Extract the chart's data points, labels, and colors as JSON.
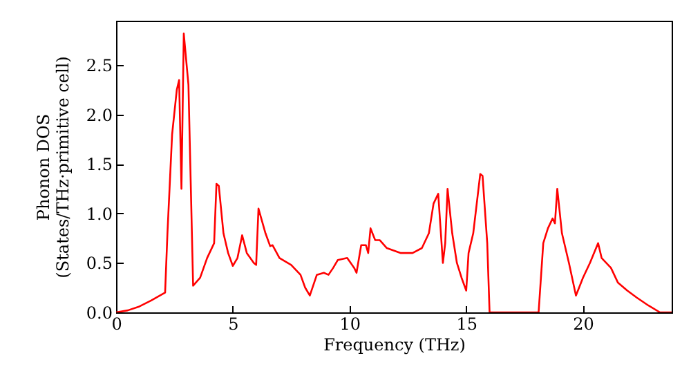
{
  "chart_data": {
    "type": "line",
    "xlabel": "Frequency (THz)",
    "ylabel": "Phonon DOS\n(States/THz·primitive cell)",
    "xlim": [
      0,
      23.8
    ],
    "xticks": [
      0,
      5,
      10,
      15,
      20
    ],
    "ylim": [
      0,
      2.95
    ],
    "yticks": [
      {
        "value": 0,
        "label": "0.0"
      },
      {
        "value": 0.5,
        "label": "0.5"
      },
      {
        "value": 1,
        "label": "1.0"
      },
      {
        "value": 1.5,
        "label": "1.5"
      },
      {
        "value": 2,
        "label": "2.0"
      },
      {
        "value": 2.5,
        "label": "2.5"
      }
    ],
    "grid": false,
    "marker": "none",
    "line_style": "solid",
    "series": [
      {
        "color": "#ff0000",
        "x": [
          0,
          0.5,
          1,
          1.5,
          2.1,
          2.2,
          2.4,
          2.6,
          2.7,
          2.8,
          2.9,
          3.1,
          3.3,
          3.6,
          3.9,
          4.2,
          4.3,
          4.4,
          4.6,
          4.8,
          5.0,
          5.2,
          5.4,
          5.6,
          5.9,
          6.0,
          6.1,
          6.4,
          6.6,
          6.7,
          7.0,
          7.5,
          7.9,
          8.1,
          8.3,
          8.6,
          8.9,
          9.1,
          9.3,
          9.5,
          9.9,
          10.2,
          10.3,
          10.5,
          10.7,
          10.8,
          10.9,
          11.1,
          11.3,
          11.6,
          12.2,
          12.7,
          13.1,
          13.4,
          13.6,
          13.8,
          14.0,
          14.1,
          14.2,
          14.4,
          14.6,
          14.8,
          15.0,
          15.1,
          15.3,
          15.6,
          15.7,
          15.9,
          16.0,
          18.1,
          18.3,
          18.5,
          18.7,
          18.8,
          18.9,
          19.1,
          19.4,
          19.7,
          20.0,
          20.3,
          20.65,
          20.8,
          21.2,
          21.5,
          21.9,
          22.3,
          22.8,
          23.3,
          23.8
        ],
        "values": [
          0,
          0.02,
          0.06,
          0.12,
          0.2,
          0.8,
          1.8,
          2.25,
          2.35,
          1.25,
          2.82,
          2.3,
          0.27,
          0.35,
          0.55,
          0.7,
          1.3,
          1.28,
          0.8,
          0.6,
          0.47,
          0.55,
          0.78,
          0.6,
          0.5,
          0.48,
          1.05,
          0.8,
          0.67,
          0.68,
          0.55,
          0.48,
          0.38,
          0.25,
          0.17,
          0.38,
          0.4,
          0.38,
          0.45,
          0.53,
          0.55,
          0.45,
          0.4,
          0.68,
          0.68,
          0.6,
          0.85,
          0.73,
          0.73,
          0.65,
          0.6,
          0.6,
          0.65,
          0.8,
          1.1,
          1.2,
          0.5,
          0.7,
          1.25,
          0.8,
          0.5,
          0.35,
          0.22,
          0.6,
          0.8,
          1.4,
          1.38,
          0.7,
          0,
          0,
          0.7,
          0.85,
          0.95,
          0.9,
          1.25,
          0.8,
          0.5,
          0.17,
          0.35,
          0.5,
          0.7,
          0.55,
          0.45,
          0.3,
          0.22,
          0.15,
          0.07,
          0,
          0
        ]
      }
    ]
  }
}
